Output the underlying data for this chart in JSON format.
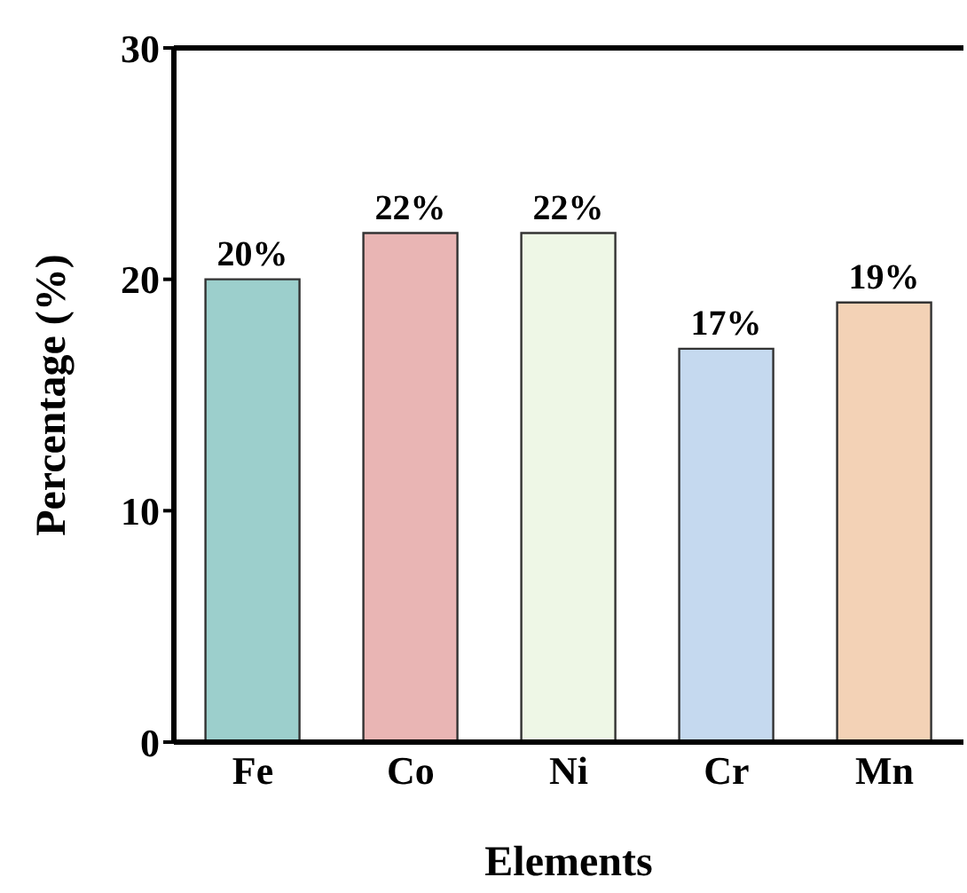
{
  "chart_data": {
    "type": "bar",
    "xlabel": "Elements",
    "ylabel": "Percentage (%)",
    "categories": [
      "Fe",
      "Co",
      "Ni",
      "Cr",
      "Mn"
    ],
    "values": [
      20,
      22,
      22,
      17,
      19
    ],
    "colors": [
      "#9ccfcc",
      "#e9b5b4",
      "#eef7e6",
      "#c5d9ef",
      "#f3d2b6"
    ],
    "value_labels": [
      "20%",
      "22%",
      "22%",
      "17%",
      "19%"
    ],
    "ylim": [
      0,
      30
    ],
    "yticks": [
      0,
      10,
      20,
      30
    ],
    "grid": false,
    "legend": false
  }
}
